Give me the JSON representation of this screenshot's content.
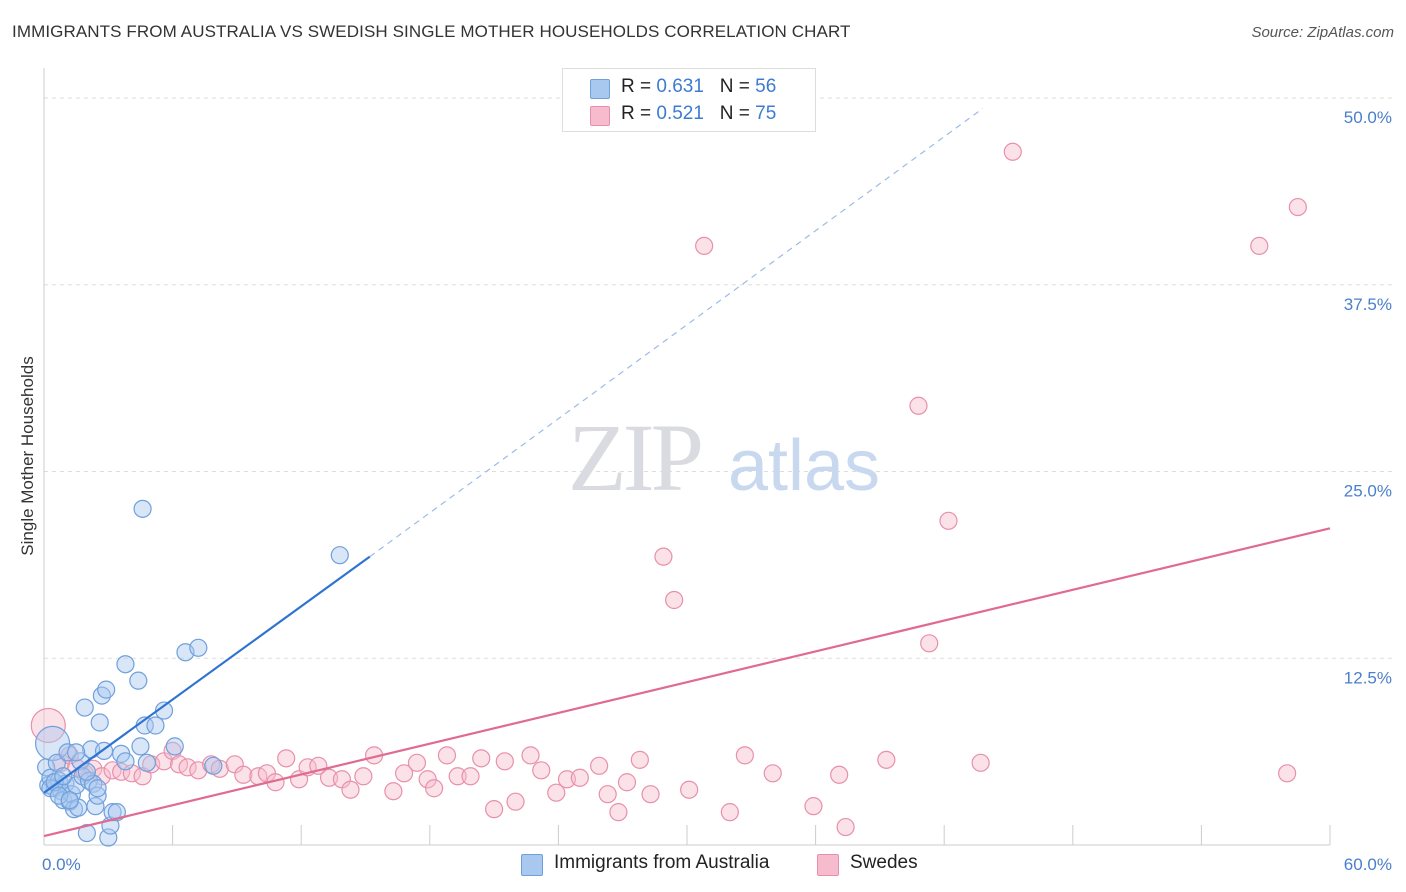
{
  "title": "IMMIGRANTS FROM AUSTRALIA VS SWEDISH SINGLE MOTHER HOUSEHOLDS CORRELATION CHART",
  "source": "Source: ZipAtlas.com",
  "watermark": {
    "zip": "ZIP",
    "atlas": "atlas"
  },
  "colors": {
    "blue_fill": "#a9c8ef",
    "blue_stroke": "#6fa0dc",
    "blue_line": "#2f73d1",
    "pink_fill": "#f6bccd",
    "pink_stroke": "#e890ab",
    "pink_line": "#e06a93",
    "tick_label": "#4a7fcb",
    "grid": "#dddddd"
  },
  "stats": [
    {
      "r_label": "R = ",
      "r_value": "0.631",
      "n_label": "N = ",
      "n_value": "56",
      "color": "#a9c8ef",
      "border": "#6fa0dc"
    },
    {
      "r_label": "R = ",
      "r_value": "0.521",
      "n_label": "N = ",
      "n_value": "75",
      "color": "#f6bccd",
      "border": "#e890ab"
    }
  ],
  "legend": [
    {
      "label": "Immigrants from Australia",
      "color": "#a9c8ef",
      "border": "#6fa0dc"
    },
    {
      "label": "Swedes",
      "color": "#f6bccd",
      "border": "#e890ab"
    }
  ],
  "chart_data": {
    "type": "scatter",
    "title": "IMMIGRANTS FROM AUSTRALIA VS SWEDISH SINGLE MOTHER HOUSEHOLDS CORRELATION CHART",
    "xlabel": "",
    "ylabel": "Single Mother Households",
    "xlim": [
      0,
      60
    ],
    "ylim": [
      0,
      50
    ],
    "x_tick_labels": [
      {
        "value": 0,
        "label": "0.0%"
      },
      {
        "value": 60,
        "label": "60.0%"
      }
    ],
    "x_minor_ticks": [
      6,
      12,
      18,
      24,
      30,
      36,
      42,
      48,
      54,
      60
    ],
    "y_ticks": [
      {
        "value": 12.5,
        "label": "12.5%"
      },
      {
        "value": 25,
        "label": "25.0%"
      },
      {
        "value": 37.5,
        "label": "37.5%"
      },
      {
        "value": 50,
        "label": "50.0%"
      }
    ],
    "series": [
      {
        "name": "Immigrants from Australia",
        "points": [
          [
            0.1,
            5.2
          ],
          [
            0.2,
            4.0
          ],
          [
            0.3,
            4.5
          ],
          [
            0.4,
            6.8
          ],
          [
            0.5,
            3.8
          ],
          [
            0.6,
            5.5
          ],
          [
            0.7,
            4.3
          ],
          [
            0.8,
            3.6
          ],
          [
            0.9,
            3.0
          ],
          [
            1.0,
            4.1
          ],
          [
            1.1,
            6.2
          ],
          [
            1.2,
            2.9
          ],
          [
            1.3,
            3.4
          ],
          [
            1.4,
            2.4
          ],
          [
            1.5,
            4.0
          ],
          [
            1.6,
            2.5
          ],
          [
            1.7,
            5.6
          ],
          [
            1.8,
            4.6
          ],
          [
            1.9,
            9.2
          ],
          [
            2.0,
            0.8
          ],
          [
            2.1,
            4.3
          ],
          [
            2.2,
            6.4
          ],
          [
            2.3,
            4.1
          ],
          [
            2.4,
            2.6
          ],
          [
            2.5,
            3.3
          ],
          [
            2.6,
            8.2
          ],
          [
            2.7,
            10.0
          ],
          [
            2.8,
            6.3
          ],
          [
            2.9,
            10.4
          ],
          [
            3.0,
            0.5
          ],
          [
            3.1,
            1.3
          ],
          [
            3.2,
            2.2
          ],
          [
            3.4,
            2.2
          ],
          [
            3.6,
            6.1
          ],
          [
            3.8,
            5.6
          ],
          [
            3.8,
            12.1
          ],
          [
            4.4,
            11.0
          ],
          [
            4.5,
            6.6
          ],
          [
            4.6,
            22.5
          ],
          [
            4.7,
            8.0
          ],
          [
            4.8,
            5.5
          ],
          [
            5.2,
            8.0
          ],
          [
            5.6,
            9.0
          ],
          [
            6.1,
            6.6
          ],
          [
            6.6,
            12.9
          ],
          [
            7.2,
            13.2
          ],
          [
            7.9,
            5.3
          ],
          [
            13.8,
            19.4
          ],
          [
            0.3,
            3.8
          ],
          [
            0.5,
            4.2
          ],
          [
            0.7,
            3.3
          ],
          [
            0.9,
            4.6
          ],
          [
            1.2,
            3.0
          ],
          [
            1.5,
            6.2
          ],
          [
            2.0,
            4.9
          ],
          [
            2.5,
            3.8
          ]
        ],
        "fit_line": {
          "solid": [
            [
              0,
              3.5
            ],
            [
              15.2,
              19.3
            ]
          ],
          "dashed": [
            [
              15.2,
              19.3
            ],
            [
              43.8,
              49.3
            ]
          ]
        }
      },
      {
        "name": "Swedes",
        "points": [
          [
            0.2,
            8.0
          ],
          [
            0.8,
            5.5
          ],
          [
            1.2,
            6.0
          ],
          [
            1.5,
            5.2
          ],
          [
            1.9,
            4.8
          ],
          [
            2.3,
            5.1
          ],
          [
            2.7,
            4.6
          ],
          [
            3.2,
            5.0
          ],
          [
            3.6,
            4.9
          ],
          [
            4.1,
            4.8
          ],
          [
            4.6,
            4.6
          ],
          [
            5.0,
            5.4
          ],
          [
            5.6,
            5.6
          ],
          [
            6.0,
            6.3
          ],
          [
            6.3,
            5.4
          ],
          [
            6.7,
            5.2
          ],
          [
            7.2,
            5.0
          ],
          [
            7.8,
            5.4
          ],
          [
            8.2,
            5.1
          ],
          [
            8.9,
            5.4
          ],
          [
            9.3,
            4.7
          ],
          [
            10.0,
            4.6
          ],
          [
            10.4,
            4.8
          ],
          [
            10.8,
            4.2
          ],
          [
            11.3,
            5.8
          ],
          [
            11.9,
            4.4
          ],
          [
            12.3,
            5.2
          ],
          [
            12.8,
            5.3
          ],
          [
            13.3,
            4.5
          ],
          [
            13.9,
            4.4
          ],
          [
            14.3,
            3.7
          ],
          [
            14.9,
            4.6
          ],
          [
            15.4,
            6.0
          ],
          [
            16.3,
            3.6
          ],
          [
            16.8,
            4.8
          ],
          [
            17.4,
            5.5
          ],
          [
            17.9,
            4.4
          ],
          [
            18.2,
            3.8
          ],
          [
            18.8,
            6.0
          ],
          [
            19.3,
            4.6
          ],
          [
            19.9,
            4.6
          ],
          [
            20.4,
            5.8
          ],
          [
            21.0,
            2.4
          ],
          [
            21.5,
            5.6
          ],
          [
            22.0,
            2.9
          ],
          [
            22.7,
            6.0
          ],
          [
            23.2,
            5.0
          ],
          [
            23.9,
            3.5
          ],
          [
            24.4,
            4.4
          ],
          [
            25.0,
            4.5
          ],
          [
            25.9,
            5.3
          ],
          [
            26.3,
            3.4
          ],
          [
            26.8,
            2.2
          ],
          [
            27.2,
            4.2
          ],
          [
            27.8,
            5.7
          ],
          [
            28.3,
            3.4
          ],
          [
            28.9,
            19.3
          ],
          [
            29.4,
            16.4
          ],
          [
            30.1,
            3.7
          ],
          [
            30.8,
            40.1
          ],
          [
            32.0,
            2.2
          ],
          [
            32.7,
            6.0
          ],
          [
            34.0,
            4.8
          ],
          [
            35.9,
            2.6
          ],
          [
            37.1,
            4.7
          ],
          [
            37.4,
            1.2
          ],
          [
            39.3,
            5.7
          ],
          [
            40.8,
            29.4
          ],
          [
            41.3,
            13.5
          ],
          [
            42.2,
            21.7
          ],
          [
            43.7,
            5.5
          ],
          [
            45.2,
            46.4
          ],
          [
            56.7,
            40.1
          ],
          [
            58.0,
            4.8
          ],
          [
            58.5,
            42.7
          ]
        ],
        "fit_line": {
          "solid": [
            [
              0,
              0.6
            ],
            [
              60,
              21.2
            ]
          ]
        }
      }
    ],
    "stats": [
      {
        "series": "Immigrants from Australia",
        "R": 0.631,
        "N": 56
      },
      {
        "series": "Swedes",
        "R": 0.521,
        "N": 75
      }
    ]
  }
}
